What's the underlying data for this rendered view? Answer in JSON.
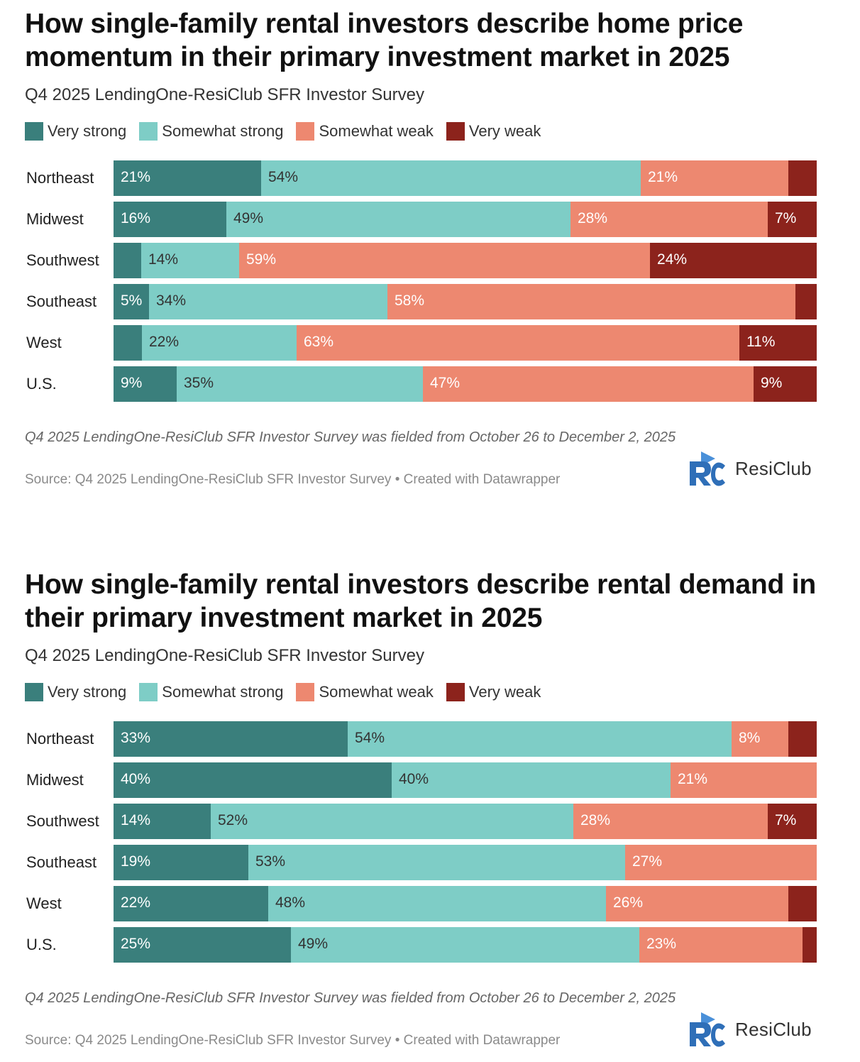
{
  "colors": {
    "very_strong": "#3a7f7c",
    "somewhat_strong": "#7ecdc6",
    "somewhat_weak": "#ed8870",
    "very_weak": "#8c231c"
  },
  "chart_data": [
    {
      "type": "bar",
      "orientation": "horizontal",
      "stacked": true,
      "title": "How single-family rental investors describe home price momentum in their primary investment market in 2025",
      "subtitle": "Q4 2025 LendingOne-ResiClub SFR Investor Survey",
      "notes": "Q4 2025 LendingOne-ResiClub SFR Investor Survey was fielded from October 26 to December 2, 2025",
      "source": "Source: Q4 2025 LendingOne-ResiClub SFR Investor Survey • Created with Datawrapper",
      "logo_text": "ResiClub",
      "legend": [
        "Very strong",
        "Somewhat strong",
        "Somewhat weak",
        "Very weak"
      ],
      "categories": [
        "Northeast",
        "Midwest",
        "Southwest",
        "Southeast",
        "West",
        "U.S."
      ],
      "series": [
        {
          "name": "Very strong",
          "values": [
            21,
            16,
            4,
            5,
            4,
            9
          ],
          "labels": [
            "21%",
            "16%",
            "",
            "5%",
            "",
            "9%"
          ]
        },
        {
          "name": "Somewhat strong",
          "values": [
            54,
            49,
            14,
            34,
            22,
            35
          ],
          "labels": [
            "54%",
            "49%",
            "14%",
            "34%",
            "22%",
            "35%"
          ]
        },
        {
          "name": "Somewhat weak",
          "values": [
            21,
            28,
            59,
            58,
            63,
            47
          ],
          "labels": [
            "21%",
            "28%",
            "59%",
            "58%",
            "63%",
            "47%"
          ]
        },
        {
          "name": "Very weak",
          "values": [
            4,
            7,
            24,
            3,
            11,
            9
          ],
          "labels": [
            "",
            "7%",
            "24%",
            "",
            "11%",
            "9%"
          ]
        }
      ]
    },
    {
      "type": "bar",
      "orientation": "horizontal",
      "stacked": true,
      "title": "How single-family rental investors describe rental demand in their primary investment market in 2025",
      "subtitle": "Q4 2025 LendingOne-ResiClub SFR Investor Survey",
      "notes": "Q4 2025 LendingOne-ResiClub SFR Investor Survey was fielded from October 26 to December 2, 2025",
      "source": "Source: Q4 2025 LendingOne-ResiClub SFR Investor Survey • Created with Datawrapper",
      "logo_text": "ResiClub",
      "legend": [
        "Very strong",
        "Somewhat strong",
        "Somewhat weak",
        "Very weak"
      ],
      "categories": [
        "Northeast",
        "Midwest",
        "Southwest",
        "Southeast",
        "West",
        "U.S."
      ],
      "series": [
        {
          "name": "Very strong",
          "values": [
            33,
            40,
            14,
            19,
            22,
            25
          ],
          "labels": [
            "33%",
            "40%",
            "14%",
            "19%",
            "22%",
            "25%"
          ]
        },
        {
          "name": "Somewhat strong",
          "values": [
            54,
            40,
            52,
            53,
            48,
            49
          ],
          "labels": [
            "54%",
            "40%",
            "52%",
            "53%",
            "48%",
            "49%"
          ]
        },
        {
          "name": "Somewhat weak",
          "values": [
            8,
            21,
            28,
            27,
            26,
            23
          ],
          "labels": [
            "8%",
            "21%",
            "28%",
            "27%",
            "26%",
            "23%"
          ]
        },
        {
          "name": "Very weak",
          "values": [
            4,
            0,
            7,
            0,
            4,
            2
          ],
          "labels": [
            "",
            "",
            "7%",
            "",
            "",
            ""
          ]
        }
      ]
    }
  ]
}
